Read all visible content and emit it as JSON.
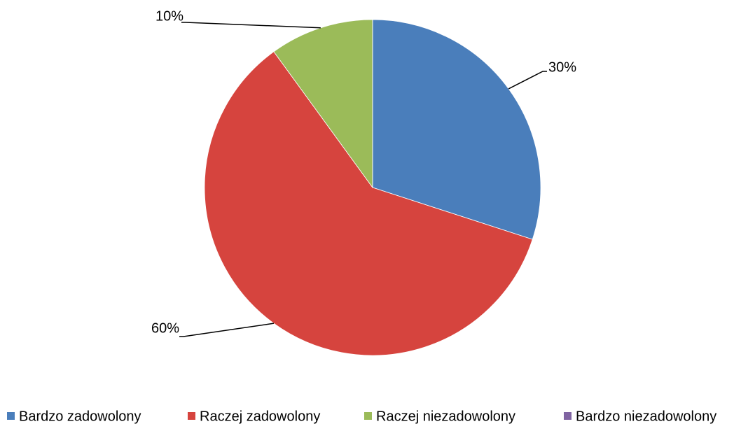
{
  "chart_data": {
    "type": "pie",
    "categories": [
      "Bardzo zadowolony",
      "Raczej zadowolony",
      "Raczej niezadowolony",
      "Bardzo niezadowolony"
    ],
    "values": [
      30,
      60,
      10,
      0
    ],
    "value_labels": [
      "30%",
      "60%",
      "10%",
      null
    ],
    "colors": [
      "#4a7ebb",
      "#d6443e",
      "#9bbb59",
      "#8064a2"
    ],
    "legend": "bottom"
  }
}
